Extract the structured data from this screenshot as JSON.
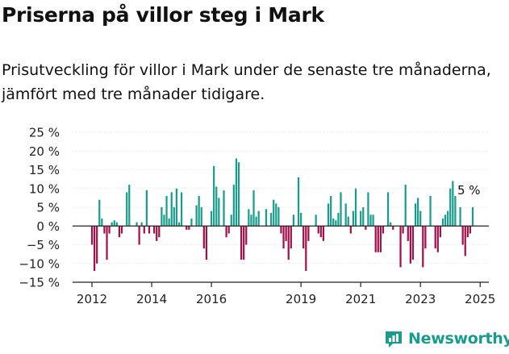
{
  "header": {
    "title": "Priserna på villor steg i Mark",
    "subtitle": "Prisutveckling för villor i Mark under de senaste tre månaderna, jämfört med tre månader tidigare."
  },
  "brand": {
    "name": "Newsworthy"
  },
  "colors": {
    "positive": "#1a9c8c",
    "negative": "#a0104a",
    "axis": "#222222",
    "grid": "#cccccc"
  },
  "chart_data": {
    "type": "bar",
    "title": "Priserna på villor steg i Mark",
    "xlabel": "",
    "ylabel": "",
    "ylim": [
      -15,
      25
    ],
    "y_ticks": [
      25,
      20,
      15,
      10,
      5,
      0,
      -5,
      -10,
      -15
    ],
    "y_tick_labels": [
      "25 %",
      "20 %",
      "15 %",
      "10 %",
      "5 %",
      "0 %",
      "−5 %",
      "−10 %",
      "−15 %"
    ],
    "x_tick_labels": [
      "2012",
      "2014",
      "2016",
      "2019",
      "2021",
      "2023",
      "2025"
    ],
    "x_tick_years": [
      2012,
      2014,
      2016,
      2019,
      2021,
      2023,
      2025
    ],
    "start": "2012-01",
    "annotation": {
      "text": "5 %",
      "value": 5
    },
    "values": [
      -5,
      -12,
      -10,
      7,
      2,
      -2,
      -9,
      -2,
      1,
      1.5,
      1,
      -3,
      -2,
      0,
      9,
      11,
      0,
      0,
      1,
      -5,
      1,
      -2,
      9.5,
      -2,
      0,
      -2,
      -4,
      -3,
      5,
      3,
      8,
      2,
      9,
      5,
      10,
      1,
      9,
      0,
      -1,
      -1,
      2,
      0,
      5.5,
      8,
      5,
      -6,
      -9,
      0,
      4,
      16,
      10.5,
      7.5,
      0,
      9.5,
      -3,
      -2,
      3,
      11,
      18,
      17,
      -9,
      -9,
      -5,
      4.5,
      3,
      9.5,
      2.5,
      4,
      0,
      0,
      4.5,
      0,
      3.5,
      7,
      6,
      5,
      -2,
      -6,
      -4,
      -9,
      -6,
      3,
      0,
      13,
      3.5,
      -6,
      -12,
      -4,
      0,
      0,
      3,
      -2,
      -3,
      -4,
      0,
      6,
      8,
      2,
      1.5,
      3.5,
      9,
      0,
      6,
      2.5,
      -2,
      4,
      10,
      0,
      4,
      5,
      -1,
      9,
      3,
      3,
      -7,
      -7,
      -7,
      -2,
      0,
      9,
      1,
      -1,
      0,
      0,
      -11,
      -2,
      11,
      -4,
      -10,
      -9,
      6,
      7.5,
      4,
      -11,
      -6,
      0,
      8,
      0,
      -6,
      -7,
      -3,
      2,
      3,
      4,
      10,
      12,
      8,
      0,
      5,
      -5,
      -8,
      -3,
      -2,
      5
    ]
  }
}
